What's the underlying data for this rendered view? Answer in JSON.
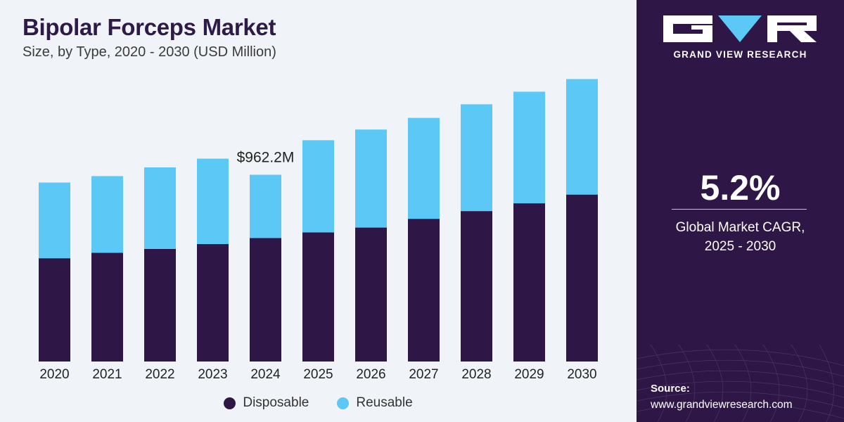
{
  "header": {
    "title": "Bipolar Forceps Market",
    "subtitle": "Size, by Type, 2020 - 2030 (USD Million)"
  },
  "chart_data": {
    "type": "bar",
    "stacked": true,
    "categories": [
      "2020",
      "2021",
      "2022",
      "2023",
      "2024",
      "2025",
      "2026",
      "2027",
      "2028",
      "2029",
      "2030"
    ],
    "series": [
      {
        "name": "Disposable",
        "color": "#2e1747",
        "values": [
          532,
          560,
          580,
          605,
          636,
          665,
          690,
          735,
          775,
          815,
          860
        ]
      },
      {
        "name": "Reusable",
        "color": "#5bc8f5",
        "values": [
          390,
          395,
          420,
          440,
          326,
          475,
          505,
          520,
          550,
          575,
          595
        ]
      }
    ],
    "annotation": {
      "category": "2024",
      "text": "$962.2M"
    },
    "ylim": [
      0,
      1500
    ],
    "grid": false,
    "legend_position": "bottom-center"
  },
  "legend": {
    "items": [
      {
        "label": "Disposable",
        "color": "#2e1747"
      },
      {
        "label": "Reusable",
        "color": "#5bc8f5"
      }
    ]
  },
  "sidebar": {
    "brand": "GRAND VIEW RESEARCH",
    "logo_icon": "gvr-logo-icon",
    "cagr_value": "5.2%",
    "cagr_label_line1": "Global Market CAGR,",
    "cagr_label_line2": "2025 - 2030",
    "source_label": "Source:",
    "source_url": "www.grandviewresearch.com"
  }
}
